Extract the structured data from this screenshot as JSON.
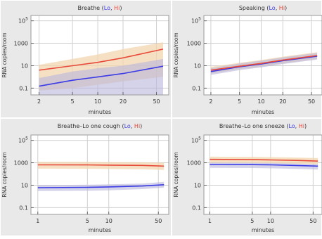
{
  "colors": {
    "lo_line": "#3b3be6",
    "hi_line": "#e84a3a",
    "lo_band": "#b9b5dc",
    "hi_band": "#f3d5b0",
    "frame_bg": "#e9e9e9",
    "plot_bg": "#ffffff"
  },
  "chart_data": [
    {
      "type": "line",
      "title": {
        "prefix": "Breathe (",
        "lo": "Lo",
        "sep": ", ",
        "hi": "Hi",
        "suffix": ")"
      },
      "xlabel": "minutes",
      "ylabel": "RNA copies/room",
      "xscale": "log",
      "yscale": "log",
      "xlim": [
        1.6,
        70
      ],
      "ylim": [
        0.025,
        300000
      ],
      "xticks": [
        {
          "v": 2,
          "label": "2"
        },
        {
          "v": 5,
          "label": "5"
        },
        {
          "v": 10,
          "label": "10"
        },
        {
          "v": 20,
          "label": "20"
        },
        {
          "v": 50,
          "label": "50"
        }
      ],
      "yticks": [
        {
          "v": 0.1,
          "label": "0.1",
          "sup": ""
        },
        {
          "v": 10,
          "label": "10",
          "sup": ""
        },
        {
          "v": 1000,
          "label": "1000",
          "sup": ""
        },
        {
          "v": 100000,
          "label": "10",
          "sup": "5"
        }
      ],
      "x": [
        2,
        5,
        10,
        20,
        60
      ],
      "series": [
        {
          "name": "Lo",
          "values": [
            0.15,
            0.5,
            1,
            2,
            9
          ],
          "band_low": [
            0.025,
            0.025,
            0.025,
            0.025,
            0.025
          ],
          "band_high": [
            0.8,
            3,
            6,
            10,
            40
          ]
        },
        {
          "name": "Hi",
          "values": [
            4,
            10,
            20,
            50,
            300
          ],
          "band_low": [
            0.06,
            0.1,
            0.2,
            0.4,
            1
          ],
          "band_high": [
            12,
            40,
            100,
            300,
            1200
          ]
        }
      ]
    },
    {
      "type": "line",
      "title": {
        "prefix": "Speaking (",
        "lo": "Lo",
        "sep": ", ",
        "hi": "Hi",
        "suffix": ")"
      },
      "xlabel": "minutes",
      "ylabel": "RNA copies/room",
      "xscale": "log",
      "yscale": "log",
      "xlim": [
        1.6,
        70
      ],
      "ylim": [
        0.025,
        300000
      ],
      "xticks": [
        {
          "v": 2,
          "label": "2"
        },
        {
          "v": 5,
          "label": "5"
        },
        {
          "v": 10,
          "label": "10"
        },
        {
          "v": 20,
          "label": "20"
        },
        {
          "v": 50,
          "label": "50"
        }
      ],
      "yticks": [
        {
          "v": 0.1,
          "label": "0.1",
          "sup": ""
        },
        {
          "v": 10,
          "label": "10",
          "sup": ""
        },
        {
          "v": 1000,
          "label": "1000",
          "sup": ""
        },
        {
          "v": 100000,
          "label": "10",
          "sup": "5"
        }
      ],
      "x": [
        2,
        5,
        10,
        20,
        60
      ],
      "series": [
        {
          "name": "Lo",
          "values": [
            3,
            8,
            14,
            28,
            70
          ],
          "band_low": [
            1.5,
            4,
            7,
            14,
            35
          ],
          "band_high": [
            6,
            16,
            28,
            55,
            140
          ]
        },
        {
          "name": "Hi",
          "values": [
            4,
            9,
            16,
            32,
            80
          ],
          "band_low": [
            2,
            5,
            8,
            16,
            40
          ],
          "band_high": [
            8,
            18,
            32,
            64,
            160
          ]
        }
      ]
    },
    {
      "type": "line",
      "title": {
        "prefix": "Breathe–Lo one cough (",
        "lo": "Lo",
        "sep": ", ",
        "hi": "Hi",
        "suffix": ")"
      },
      "xlabel": "minutes",
      "ylabel": "RNA copies/room",
      "xscale": "log",
      "yscale": "log",
      "xlim": [
        0.8,
        70
      ],
      "ylim": [
        0.025,
        300000
      ],
      "xticks": [
        {
          "v": 1,
          "label": "1"
        },
        {
          "v": 5,
          "label": "5"
        },
        {
          "v": 10,
          "label": "10"
        },
        {
          "v": 50,
          "label": "50"
        }
      ],
      "yticks": [
        {
          "v": 0.1,
          "label": "0.1",
          "sup": ""
        },
        {
          "v": 10,
          "label": "10",
          "sup": ""
        },
        {
          "v": 1000,
          "label": "1000",
          "sup": ""
        },
        {
          "v": 100000,
          "label": "10",
          "sup": "5"
        }
      ],
      "x": [
        1,
        5,
        10,
        30,
        60
      ],
      "series": [
        {
          "name": "Lo",
          "values": [
            6,
            6.5,
            7,
            8.5,
            11
          ],
          "band_low": [
            3,
            3.2,
            3.5,
            4.5,
            6
          ],
          "band_high": [
            10,
            11,
            12,
            14,
            20
          ]
        },
        {
          "name": "Hi",
          "values": [
            650,
            640,
            620,
            580,
            500
          ],
          "band_low": [
            300,
            290,
            280,
            260,
            230
          ],
          "band_high": [
            1200,
            1180,
            1150,
            1100,
            1000
          ]
        }
      ]
    },
    {
      "type": "line",
      "title": {
        "prefix": "Breathe–Lo one sneeze (",
        "lo": "Lo",
        "sep": ", ",
        "hi": "Hi",
        "suffix": ")"
      },
      "xlabel": "minutes",
      "ylabel": "RNA copies/room",
      "xscale": "log",
      "yscale": "log",
      "xlim": [
        0.8,
        70
      ],
      "ylim": [
        0.025,
        300000
      ],
      "xticks": [
        {
          "v": 1,
          "label": "1"
        },
        {
          "v": 5,
          "label": "5"
        },
        {
          "v": 10,
          "label": "10"
        },
        {
          "v": 50,
          "label": "50"
        }
      ],
      "yticks": [
        {
          "v": 0.1,
          "label": "0.1",
          "sup": ""
        },
        {
          "v": 10,
          "label": "10",
          "sup": ""
        },
        {
          "v": 1000,
          "label": "1000",
          "sup": ""
        },
        {
          "v": 100000,
          "label": "10",
          "sup": "5"
        }
      ],
      "x": [
        1,
        5,
        10,
        30,
        60
      ],
      "series": [
        {
          "name": "Lo",
          "values": [
            700,
            680,
            650,
            560,
            500
          ],
          "band_low": [
            350,
            340,
            320,
            280,
            250
          ],
          "band_high": [
            1000,
            980,
            950,
            850,
            750
          ]
        },
        {
          "name": "Hi",
          "values": [
            2000,
            1900,
            1800,
            1600,
            1400
          ],
          "band_low": [
            1000,
            950,
            900,
            800,
            700
          ],
          "band_high": [
            3500,
            3400,
            3200,
            2900,
            2600
          ]
        }
      ]
    }
  ]
}
